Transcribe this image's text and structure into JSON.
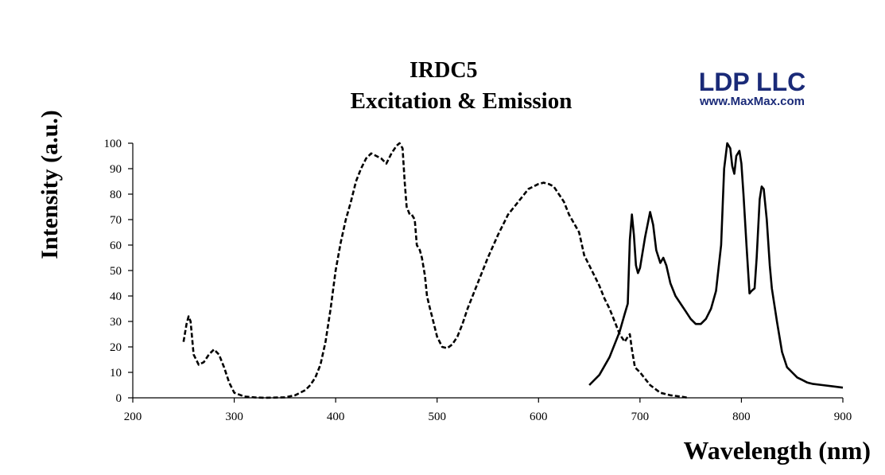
{
  "logo": {
    "name": "LDP LLC",
    "url": "www.MaxMax.com",
    "color": "#1a2a78"
  },
  "chart_data": {
    "type": "line",
    "title": "IRDC5",
    "subtitle": "Excitation & Emission",
    "xlabel": "Wavelength (nm)",
    "ylabel": "Intensity (a.u.)",
    "xlim": [
      200,
      900
    ],
    "ylim": [
      0,
      100
    ],
    "x_ticks": [
      200,
      300,
      400,
      500,
      600,
      700,
      800,
      900
    ],
    "y_ticks": [
      0,
      10,
      20,
      30,
      40,
      50,
      60,
      70,
      80,
      90,
      100
    ],
    "grid": false,
    "legend": "none",
    "series": [
      {
        "style": "dashed",
        "x": [
          250,
          253,
          255,
          257,
          260,
          265,
          270,
          275,
          280,
          285,
          290,
          295,
          300,
          310,
          320,
          330,
          340,
          350,
          360,
          365,
          370,
          375,
          380,
          385,
          390,
          395,
          400,
          405,
          410,
          415,
          420,
          425,
          430,
          435,
          440,
          445,
          450,
          455,
          460,
          463,
          466,
          468,
          470,
          473,
          475,
          478,
          480,
          483,
          485,
          488,
          490,
          493,
          495,
          500,
          505,
          510,
          515,
          520,
          525,
          530,
          540,
          550,
          560,
          570,
          580,
          590,
          600,
          605,
          610,
          615,
          620,
          625,
          630,
          640,
          645,
          650,
          655,
          660,
          665,
          670,
          675,
          680,
          685,
          688,
          690,
          692,
          695,
          700,
          710,
          720,
          730,
          740,
          748
        ],
        "y": [
          22,
          29,
          32,
          30,
          17,
          13,
          14,
          17,
          19,
          17,
          12,
          6,
          2,
          0.5,
          0.2,
          0,
          0.1,
          0.2,
          1,
          2,
          3,
          5,
          8,
          13,
          22,
          35,
          50,
          61,
          70,
          77,
          85,
          90,
          94,
          96,
          95,
          94,
          92,
          96,
          99,
          100,
          98,
          85,
          75,
          72,
          72,
          70,
          60,
          58,
          55,
          48,
          40,
          35,
          32,
          24,
          20,
          19.5,
          21,
          24,
          29,
          35,
          45,
          55,
          64,
          72,
          77,
          82,
          84,
          84.5,
          84,
          83,
          80,
          77,
          72,
          65,
          56,
          52,
          48,
          44,
          39,
          35,
          30,
          25,
          22,
          24,
          25,
          19,
          12,
          10,
          5,
          2,
          1,
          0.5,
          0
        ]
      },
      {
        "style": "solid",
        "x": [
          650,
          660,
          670,
          680,
          685,
          688,
          690,
          692,
          694,
          696,
          698,
          700,
          705,
          710,
          713,
          716,
          720,
          723,
          726,
          730,
          735,
          740,
          745,
          750,
          755,
          760,
          765,
          770,
          775,
          780,
          783,
          786,
          789,
          791,
          793,
          795,
          798,
          800,
          802,
          805,
          808,
          810,
          813,
          815,
          818,
          820,
          822,
          825,
          828,
          830,
          835,
          840,
          845,
          850,
          855,
          860,
          865,
          870,
          880,
          890,
          900
        ],
        "y": [
          5,
          9,
          16,
          26,
          33,
          37,
          62,
          72,
          64,
          52,
          49,
          51,
          63,
          73,
          68,
          58,
          53,
          55,
          52,
          45,
          40,
          37,
          34,
          31,
          29,
          29,
          31,
          35,
          42,
          60,
          90,
          100,
          98,
          91,
          88,
          95,
          97,
          92,
          80,
          60,
          41,
          42,
          43,
          55,
          78,
          83,
          82,
          70,
          52,
          43,
          30,
          18,
          12,
          10,
          8,
          7,
          6,
          5.5,
          5,
          4.5,
          4
        ]
      }
    ]
  }
}
